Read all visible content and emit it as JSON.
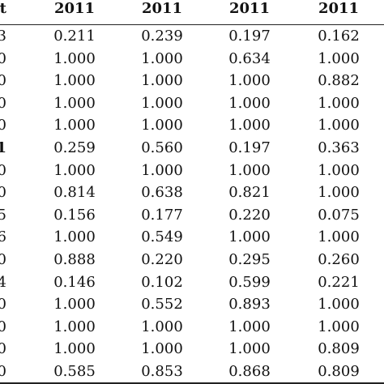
{
  "header": {
    "stub": "t",
    "columns": [
      "2011",
      "2011",
      "2011",
      "2011"
    ]
  },
  "rows": [
    {
      "stub": "3",
      "stub_bold": false,
      "values": [
        "0.211",
        "0.239",
        "0.197",
        "0.162"
      ]
    },
    {
      "stub": "0",
      "stub_bold": false,
      "values": [
        "1.000",
        "1.000",
        "0.634",
        "1.000"
      ]
    },
    {
      "stub": "0",
      "stub_bold": false,
      "values": [
        "1.000",
        "1.000",
        "1.000",
        "0.882"
      ]
    },
    {
      "stub": "0",
      "stub_bold": false,
      "values": [
        "1.000",
        "1.000",
        "1.000",
        "1.000"
      ]
    },
    {
      "stub": "0",
      "stub_bold": false,
      "values": [
        "1.000",
        "1.000",
        "1.000",
        "1.000"
      ]
    },
    {
      "stub": "1",
      "stub_bold": true,
      "values": [
        "0.259",
        "0.560",
        "0.197",
        "0.363"
      ]
    },
    {
      "stub": "0",
      "stub_bold": false,
      "values": [
        "1.000",
        "1.000",
        "1.000",
        "1.000"
      ]
    },
    {
      "stub": "0",
      "stub_bold": false,
      "values": [
        "0.814",
        "0.638",
        "0.821",
        "1.000"
      ]
    },
    {
      "stub": "5",
      "stub_bold": false,
      "values": [
        "0.156",
        "0.177",
        "0.220",
        "0.075"
      ]
    },
    {
      "stub": "6",
      "stub_bold": false,
      "values": [
        "1.000",
        "0.549",
        "1.000",
        "1.000"
      ]
    },
    {
      "stub": "0",
      "stub_bold": false,
      "values": [
        "0.888",
        "0.220",
        "0.295",
        "0.260"
      ]
    },
    {
      "stub": "4",
      "stub_bold": false,
      "values": [
        "0.146",
        "0.102",
        "0.599",
        "0.221"
      ]
    },
    {
      "stub": "0",
      "stub_bold": false,
      "values": [
        "1.000",
        "0.552",
        "0.893",
        "1.000"
      ]
    },
    {
      "stub": "0",
      "stub_bold": false,
      "values": [
        "1.000",
        "1.000",
        "1.000",
        "1.000"
      ]
    },
    {
      "stub": "0",
      "stub_bold": false,
      "values": [
        "1.000",
        "1.000",
        "1.000",
        "0.809"
      ]
    },
    {
      "stub": "0",
      "stub_bold": false,
      "values": [
        "0.585",
        "0.853",
        "0.868",
        "0.809"
      ]
    }
  ]
}
